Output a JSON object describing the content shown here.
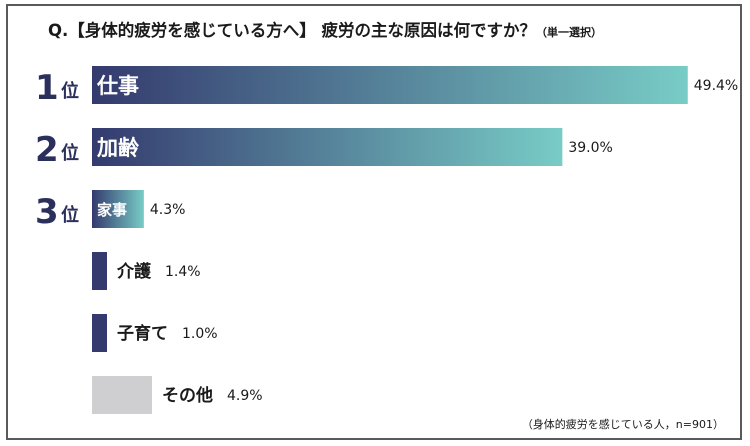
{
  "question": {
    "main": "Q.【身体的疲労を感じている方へ】 疲労の主な原因は何ですか？",
    "sub": "（単一選択）"
  },
  "ranks": [
    {
      "num": "1",
      "suffix": "位"
    },
    {
      "num": "2",
      "suffix": "位"
    },
    {
      "num": "3",
      "suffix": "位"
    }
  ],
  "footnote": "（身体的疲労を感じている人，n=901）",
  "chart_data": {
    "type": "bar",
    "orientation": "horizontal",
    "categories": [
      "仕事",
      "加齢",
      "家事",
      "介護",
      "子育て",
      "その他"
    ],
    "values": [
      49.4,
      39.0,
      4.3,
      1.4,
      1.0,
      4.9
    ],
    "value_labels": [
      "49.4%",
      "39.0%",
      "4.3%",
      "1.4%",
      "1.0%",
      "4.9%"
    ],
    "unit": "%",
    "colors": {
      "gradient_start": "#343a6e",
      "gradient_end": "#78ccc6",
      "solid": "#343a6e",
      "other": "#cfcfd1"
    }
  }
}
